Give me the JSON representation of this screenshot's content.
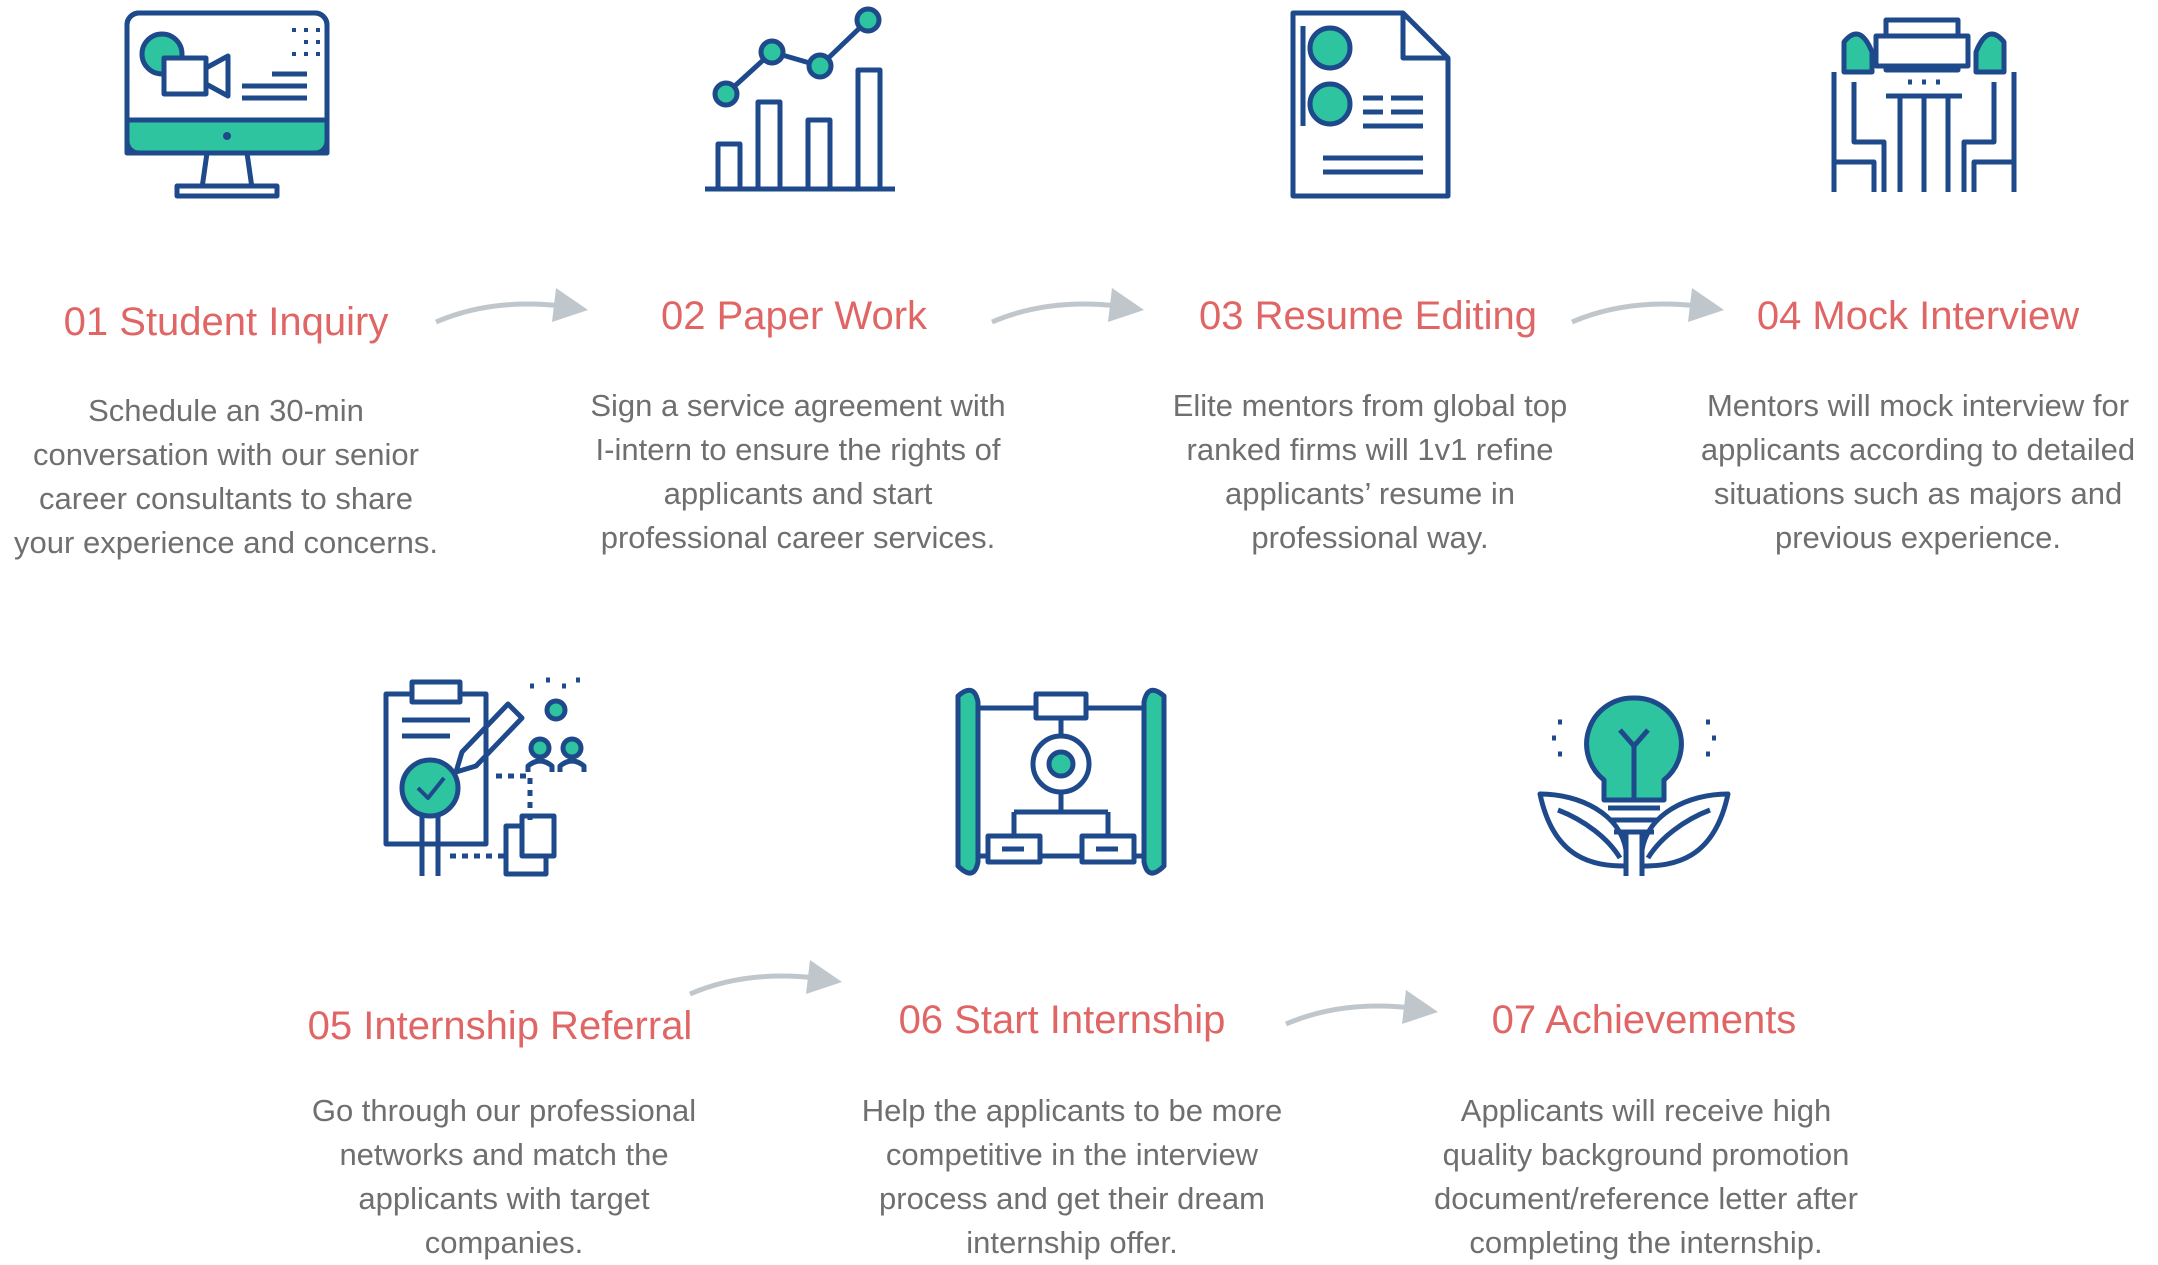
{
  "colors": {
    "navy": "#1e4a8c",
    "teal": "#2ec4a0",
    "title": "#e06666",
    "text": "#6f6f6f",
    "arrow": "#c0c7cc"
  },
  "steps": [
    {
      "title": "01 Student Inquiry",
      "icon": "computer-video-call-icon",
      "lines": [
        "Schedule an 30-min",
        "conversation with our senior",
        "career consultants to share",
        "your experience and concerns."
      ]
    },
    {
      "title": "02 Paper Work",
      "icon": "bar-line-chart-icon",
      "lines": [
        "Sign a service agreement with",
        "I-intern to ensure the rights of",
        "applicants and start",
        "professional career services."
      ]
    },
    {
      "title": "03 Resume Editing",
      "icon": "resume-document-icon",
      "lines": [
        "Elite mentors from global top",
        "ranked firms will 1v1 refine",
        "applicants’ resume in",
        "professional way."
      ]
    },
    {
      "title": "04 Mock Interview",
      "icon": "interview-table-icon",
      "lines": [
        "Mentors will mock interview for",
        "applicants according to detailed",
        "situations such as majors and",
        "previous experience."
      ]
    },
    {
      "title": "05 Internship Referral",
      "icon": "clipboard-referral-icon",
      "lines": [
        "Go through our professional",
        "networks and match the",
        "applicants with target",
        "companies."
      ]
    },
    {
      "title": "06 Start Internship",
      "icon": "flowchart-blueprint-icon",
      "lines": [
        "Help the applicants to be more",
        "competitive in the interview",
        "process and get their dream",
        "internship offer."
      ]
    },
    {
      "title": "07 Achievements",
      "icon": "lightbulb-plant-icon",
      "lines": [
        "Applicants will receive high",
        "quality background promotion",
        "document/reference letter after",
        "completing the internship."
      ]
    }
  ]
}
